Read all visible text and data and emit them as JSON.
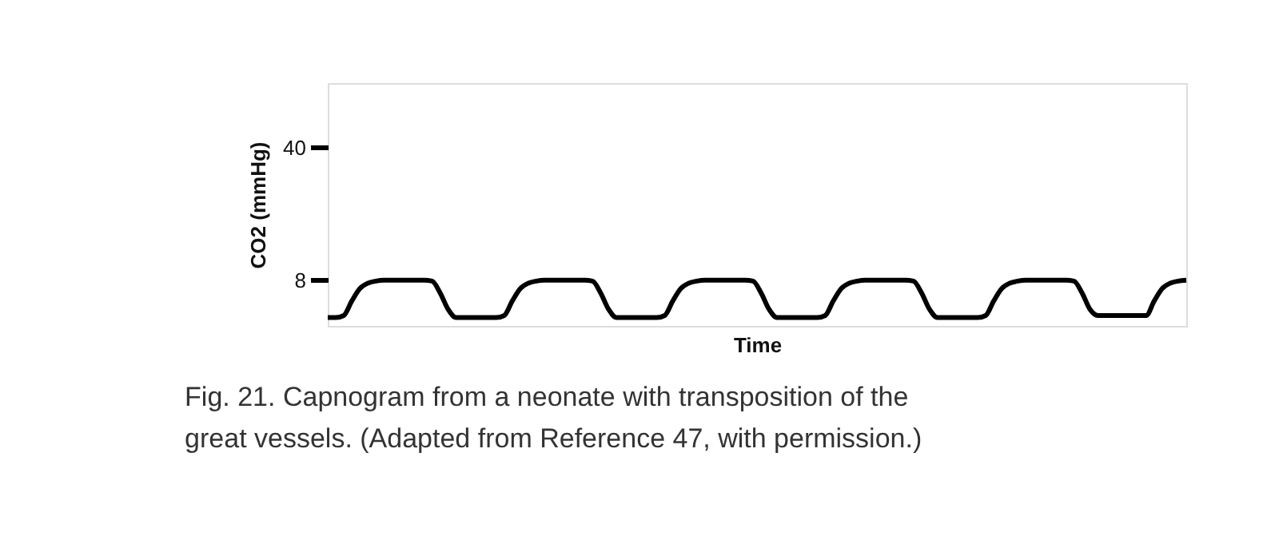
{
  "chart_data": {
    "type": "line",
    "xlabel": "Time",
    "ylabel": "CO2 (mmHg)",
    "annotations": [
      "Fig. 21. Capnogram from a neonate with transposition of the great vessels. (Adapted from Reference 47, with permission.)"
    ],
    "categories": [
      null,
      null,
      null,
      null,
      null,
      null,
      null,
      null,
      null,
      null,
      null,
      null,
      null,
      null,
      null,
      null,
      null,
      null,
      null,
      null,
      null,
      null,
      null,
      null,
      null,
      null,
      null,
      null,
      null,
      null,
      null,
      null,
      null,
      null,
      null,
      null,
      null,
      null,
      null,
      null,
      null,
      null,
      null,
      null,
      null,
      null,
      null,
      null,
      null,
      null,
      null,
      null,
      null,
      null,
      null,
      null,
      null,
      null,
      null,
      null,
      null,
      null,
      null,
      null,
      null,
      null,
      null,
      null,
      null,
      null,
      null,
      null,
      null,
      null,
      null,
      null,
      null,
      null,
      null,
      null,
      null,
      null,
      null,
      null,
      null,
      null,
      null,
      null,
      null,
      null,
      null,
      null,
      null,
      null,
      null,
      null,
      null,
      null,
      null,
      null,
      null,
      null,
      null,
      null,
      null,
      null,
      null,
      null
    ],
    "series": [
      {
        "color": "#000000",
        "values": [
          -1,
          -1,
          -0.5,
          3,
          6,
          7.3,
          7.8,
          8,
          8,
          8,
          8,
          8,
          8,
          7.8,
          5,
          1,
          -1,
          -1,
          -1,
          -1,
          -1,
          -1,
          -0.5,
          3,
          6,
          7.3,
          7.8,
          8,
          8,
          8,
          8,
          8,
          8,
          7.8,
          5,
          1,
          -1,
          -1,
          -1,
          -1,
          -1,
          -1,
          -0.5,
          3,
          6,
          7.3,
          7.8,
          8,
          8,
          8,
          8,
          8,
          8,
          7.8,
          5,
          1,
          -1,
          -1,
          -1,
          -1,
          -1,
          -1,
          -0.5,
          3,
          6,
          7.3,
          7.8,
          8,
          8,
          8,
          8,
          8,
          8,
          7.8,
          5,
          1,
          -1,
          -1,
          -1,
          -1,
          -1,
          -1,
          -0.5,
          3,
          6,
          7.3,
          7.8,
          8,
          8,
          8,
          8,
          8,
          8,
          7.8,
          5,
          1,
          -0.5,
          -0.5,
          -0.5,
          -0.5,
          -0.5,
          -0.5,
          -0.5,
          3,
          6,
          7.3,
          7.8,
          8
        ]
      }
    ],
    "ylim": [
      -3,
      55.5
    ],
    "yticks": [
      8,
      40
    ],
    "grid": false
  }
}
